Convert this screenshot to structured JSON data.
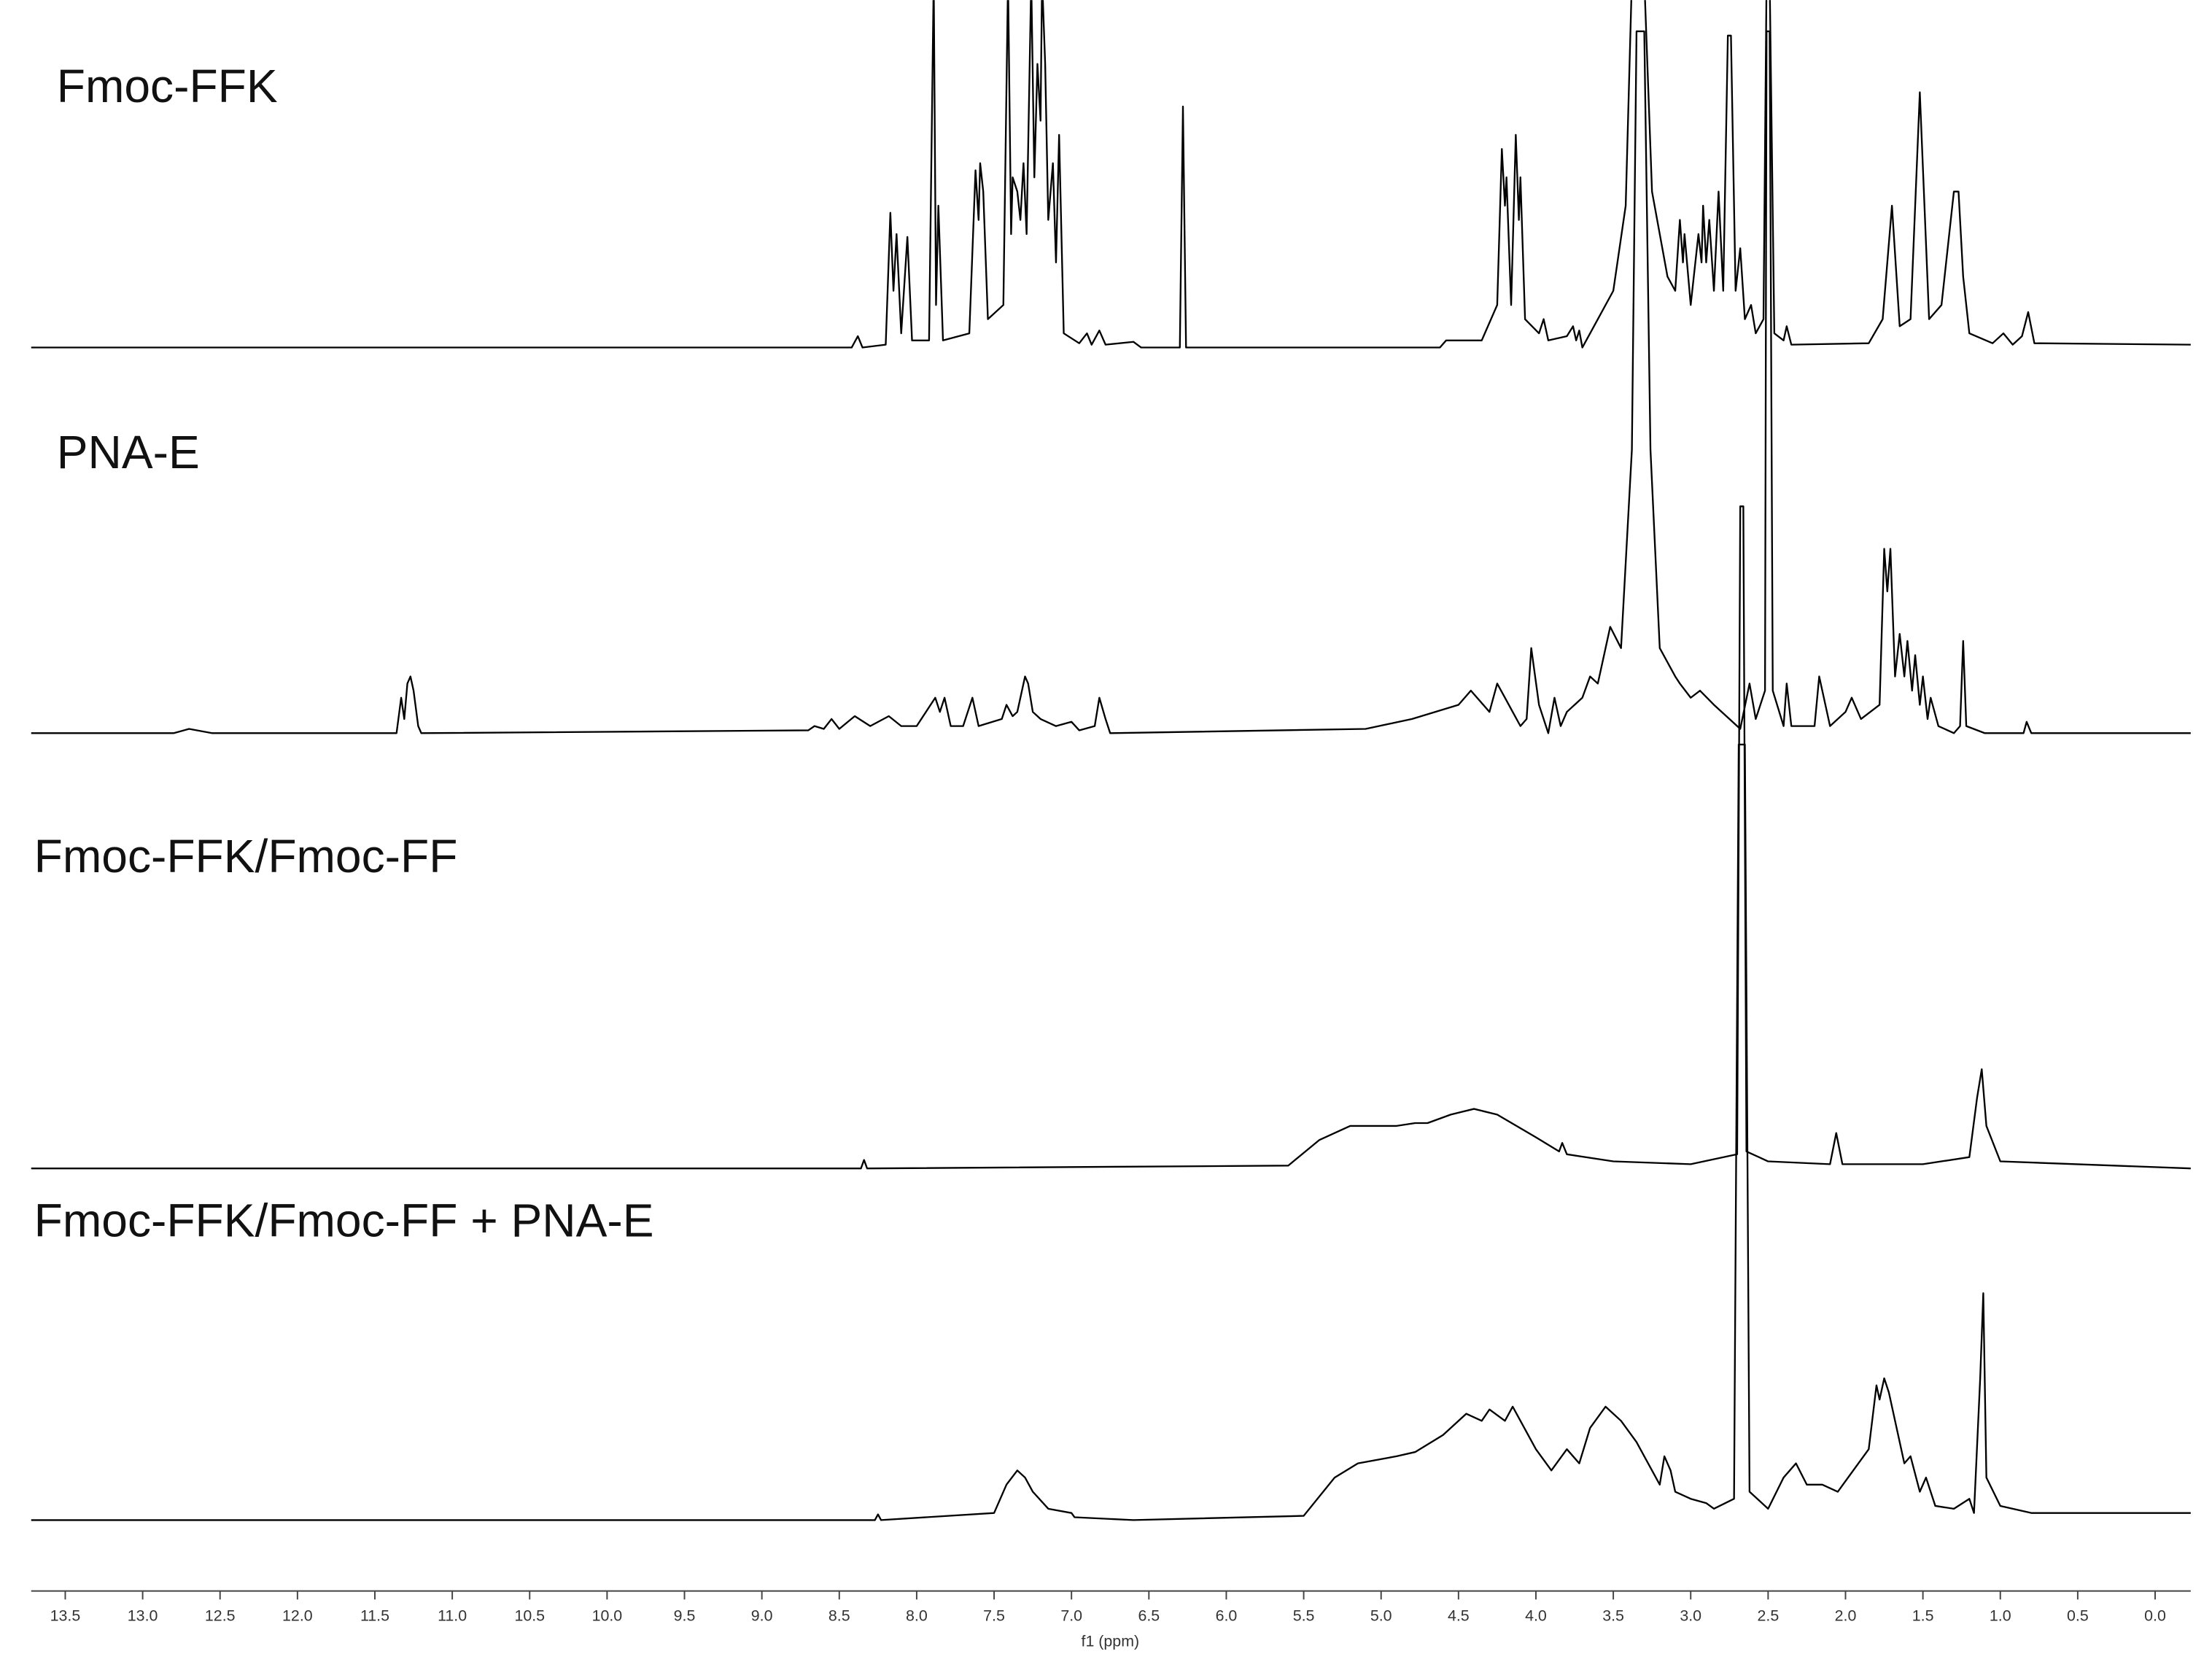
{
  "chart_data": {
    "type": "line",
    "xlabel": "f1 (ppm)",
    "xlim": [
      13.72,
      -0.23
    ],
    "xticks": [
      13.5,
      {
        "value": 13,
        "label": "13.0"
      },
      12.5,
      {
        "value": 12,
        "label": "12.0"
      },
      11.5,
      {
        "value": 11,
        "label": "11.0"
      },
      10.5,
      {
        "value": 10,
        "label": "10.0"
      },
      9.5,
      {
        "value": 9,
        "label": "9.0"
      },
      8.5,
      {
        "value": 8,
        "label": "8.0"
      },
      7.5,
      {
        "value": 7,
        "label": "7.0"
      },
      6.5,
      {
        "value": 6,
        "label": "6.0"
      },
      5.5,
      {
        "value": 5,
        "label": "5.0"
      },
      4.5,
      {
        "value": 4,
        "label": "4.0"
      },
      3.5,
      {
        "value": 3,
        "label": "3.0"
      },
      2.5,
      {
        "value": 2,
        "label": "2.0"
      },
      1.5,
      {
        "value": 1,
        "label": "1.0"
      },
      0.5,
      {
        "value": 0,
        "label": "0.0"
      }
    ],
    "series": [
      {
        "name": "Fmoc-FFK",
        "color": "#000000",
        "x": [
          13.72,
          8.42,
          8.38,
          8.35,
          8.2,
          8.17,
          8.15,
          8.13,
          8.1,
          8.06,
          8.03,
          7.92,
          7.89,
          7.875,
          7.86,
          7.83,
          7.66,
          7.62,
          7.6,
          7.59,
          7.57,
          7.54,
          7.44,
          7.41,
          7.39,
          7.38,
          7.35,
          7.33,
          7.31,
          7.29,
          7.26,
          7.24,
          7.22,
          7.2,
          7.19,
          7.17,
          7.15,
          7.12,
          7.1,
          7.08,
          7.05,
          6.95,
          6.9,
          6.87,
          6.82,
          6.78,
          6.6,
          6.55,
          6.3,
          6.28,
          6.26,
          4.62,
          4.58,
          4.35,
          4.25,
          4.22,
          4.2,
          4.19,
          4.16,
          4.13,
          4.11,
          4.1,
          4.07,
          3.98,
          3.95,
          3.92,
          3.8,
          3.76,
          3.74,
          3.72,
          3.7,
          3.6,
          3.5,
          3.42,
          3.38,
          3.3,
          3.25,
          3.15,
          3.1,
          3.07,
          3.05,
          3.04,
          3.0,
          2.95,
          2.93,
          2.92,
          2.9,
          2.88,
          2.85,
          2.82,
          2.79,
          2.76,
          2.74,
          2.71,
          2.68,
          2.65,
          2.61,
          2.58,
          2.53,
          2.51,
          2.49,
          2.46,
          2.4,
          2.38,
          2.35,
          1.85,
          1.76,
          1.7,
          1.65,
          1.58,
          1.52,
          1.46,
          1.38,
          1.3,
          1.27,
          1.24,
          1.2,
          1.05,
          0.98,
          0.92,
          0.86,
          0.82,
          0.78,
          -0.23
        ],
        "values": [
          0,
          0,
          8,
          0,
          2,
          95,
          40,
          80,
          10,
          78,
          5,
          5,
          260,
          30,
          100,
          5,
          10,
          125,
          90,
          130,
          110,
          20,
          30,
          260,
          80,
          120,
          110,
          90,
          130,
          80,
          260,
          120,
          200,
          160,
          260,
          200,
          90,
          130,
          60,
          150,
          10,
          3,
          10,
          2,
          12,
          2,
          4,
          0,
          0,
          170,
          0,
          0,
          5,
          5,
          30,
          140,
          100,
          120,
          30,
          150,
          90,
          120,
          20,
          10,
          20,
          5,
          8,
          15,
          5,
          12,
          0,
          20,
          40,
          100,
          260,
          260,
          110,
          50,
          40,
          90,
          60,
          80,
          30,
          80,
          60,
          100,
          60,
          90,
          40,
          110,
          40,
          220,
          220,
          40,
          70,
          20,
          30,
          10,
          20,
          260,
          260,
          10,
          5,
          15,
          2,
          3,
          20,
          100,
          15,
          20,
          180,
          20,
          30,
          110,
          110,
          50,
          10,
          3,
          10,
          2,
          8,
          25,
          3,
          2
        ]
      },
      {
        "name": "PNA-E",
        "color": "#000000",
        "x": [
          13.72,
          12.8,
          12.7,
          12.55,
          11.36,
          11.33,
          11.31,
          11.29,
          11.27,
          11.25,
          11.22,
          11.2,
          8.7,
          8.66,
          8.6,
          8.55,
          8.5,
          8.4,
          8.3,
          8.18,
          8.1,
          8.0,
          7.88,
          7.85,
          7.82,
          7.78,
          7.7,
          7.64,
          7.6,
          7.45,
          7.42,
          7.38,
          7.35,
          7.3,
          7.28,
          7.25,
          7.2,
          7.1,
          7.0,
          6.95,
          6.85,
          6.82,
          6.78,
          6.75,
          5.1,
          4.8,
          4.5,
          4.42,
          4.38,
          4.3,
          4.25,
          4.2,
          4.15,
          4.1,
          4.06,
          4.03,
          3.98,
          3.92,
          3.88,
          3.84,
          3.8,
          3.7,
          3.65,
          3.6,
          3.52,
          3.45,
          3.38,
          3.35,
          3.3,
          3.26,
          3.2,
          3.1,
          3.07,
          3.0,
          2.94,
          2.85,
          2.75,
          2.68,
          2.62,
          2.58,
          2.52,
          2.51,
          2.49,
          2.47,
          2.4,
          2.38,
          2.35,
          2.2,
          2.17,
          2.13,
          2.1,
          2.0,
          1.96,
          1.9,
          1.78,
          1.75,
          1.73,
          1.71,
          1.68,
          1.65,
          1.62,
          1.6,
          1.57,
          1.55,
          1.52,
          1.5,
          1.47,
          1.45,
          1.4,
          1.3,
          1.26,
          1.24,
          1.22,
          1.1,
          0.85,
          0.83,
          0.8,
          -0.23
        ],
        "values": [
          0,
          0,
          3,
          0,
          0,
          25,
          10,
          35,
          40,
          30,
          5,
          0,
          2,
          5,
          3,
          10,
          3,
          12,
          5,
          12,
          5,
          5,
          25,
          15,
          25,
          5,
          5,
          25,
          5,
          10,
          20,
          12,
          15,
          40,
          35,
          15,
          10,
          5,
          8,
          2,
          5,
          25,
          10,
          0,
          3,
          10,
          20,
          30,
          25,
          15,
          35,
          25,
          15,
          5,
          10,
          60,
          20,
          0,
          25,
          5,
          15,
          25,
          40,
          35,
          75,
          60,
          200,
          495,
          495,
          200,
          60,
          40,
          35,
          25,
          30,
          20,
          10,
          3,
          35,
          10,
          30,
          495,
          495,
          30,
          5,
          35,
          5,
          5,
          40,
          20,
          5,
          15,
          25,
          10,
          20,
          130,
          100,
          130,
          40,
          70,
          40,
          65,
          30,
          55,
          20,
          40,
          10,
          25,
          5,
          0,
          5,
          65,
          5,
          0,
          0,
          8,
          0,
          0
        ]
      },
      {
        "name": "Fmoc-FFK/Fmoc-FF",
        "color": "#000000",
        "x": [
          13.72,
          8.36,
          8.34,
          8.32,
          5.6,
          5.4,
          5.2,
          4.9,
          4.78,
          4.7,
          4.55,
          4.4,
          4.25,
          4.0,
          3.85,
          3.83,
          3.8,
          3.5,
          3.0,
          2.7,
          2.68,
          2.66,
          2.64,
          2.5,
          2.1,
          2.06,
          2.02,
          1.5,
          1.2,
          1.15,
          1.12,
          1.09,
          1.0,
          -0.23
        ],
        "values": [
          0,
          0,
          6,
          0,
          2,
          20,
          30,
          30,
          32,
          32,
          38,
          42,
          38,
          22,
          12,
          18,
          10,
          5,
          3,
          10,
          467,
          467,
          12,
          5,
          3,
          25,
          3,
          3,
          8,
          50,
          70,
          30,
          5,
          0
        ]
      },
      {
        "name": "Fmoc-FFK/Fmoc-FF + PNA-E",
        "color": "#000000",
        "x": [
          13.72,
          8.27,
          8.25,
          8.23,
          7.5,
          7.42,
          7.35,
          7.3,
          7.25,
          7.15,
          7.0,
          6.98,
          6.6,
          5.5,
          5.3,
          5.15,
          4.9,
          4.78,
          4.6,
          4.45,
          4.35,
          4.3,
          4.2,
          4.15,
          4.0,
          3.9,
          3.8,
          3.72,
          3.65,
          3.55,
          3.45,
          3.35,
          3.3,
          3.2,
          3.17,
          3.13,
          3.1,
          3.0,
          2.9,
          2.85,
          2.72,
          2.69,
          2.65,
          2.62,
          2.5,
          2.4,
          2.32,
          2.25,
          2.15,
          2.05,
          1.95,
          1.85,
          1.8,
          1.78,
          1.75,
          1.72,
          1.68,
          1.62,
          1.58,
          1.52,
          1.48,
          1.42,
          1.3,
          1.2,
          1.17,
          1.13,
          1.11,
          1.09,
          1.0,
          0.8,
          -0.23
        ],
        "values": [
          0,
          0,
          4,
          0,
          5,
          25,
          35,
          30,
          20,
          8,
          5,
          2,
          0,
          3,
          30,
          40,
          45,
          48,
          60,
          75,
          70,
          78,
          70,
          80,
          50,
          35,
          50,
          40,
          65,
          80,
          70,
          55,
          45,
          25,
          45,
          35,
          20,
          15,
          12,
          8,
          15,
          547,
          547,
          20,
          8,
          30,
          40,
          25,
          25,
          20,
          35,
          50,
          95,
          85,
          100,
          90,
          70,
          40,
          45,
          20,
          30,
          10,
          8,
          15,
          5,
          100,
          160,
          30,
          10,
          5,
          5
        ]
      }
    ]
  }
}
